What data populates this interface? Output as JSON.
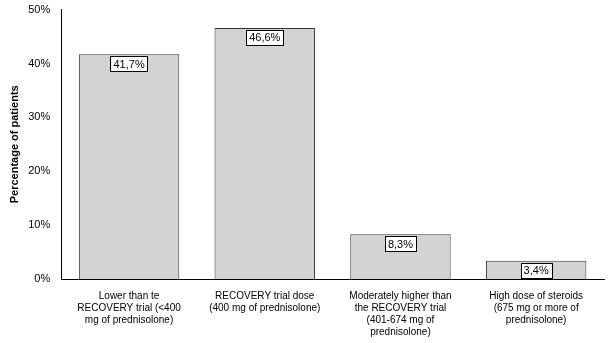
{
  "chart_data": {
    "type": "bar",
    "y_label": "Percentage of patients",
    "categories": [
      "Lower than te\nRECOVERY trial (<400\nmg of prednisolone)",
      "RECOVERY trial dose\n(400 mg of prednisolone)",
      "Moderately higher than\nthe RECOVERY trial\n(401-674 mg of\nprednisolone)",
      "High dose of steroids\n(675 mg or more of\nprednisolone)"
    ],
    "values": [
      41.7,
      46.6,
      8.3,
      3.4
    ],
    "value_labels": [
      "41,7%",
      "46,6%",
      "8,3%",
      "3,4%"
    ],
    "data_labels": true,
    "color": "#d3d3d3",
    "ylim": [
      0,
      50
    ],
    "yticks": [
      {
        "value": 0,
        "label": "0%"
      },
      {
        "value": 10,
        "label": "10%"
      },
      {
        "value": 20,
        "label": "20%"
      },
      {
        "value": 30,
        "label": "30%"
      },
      {
        "value": 40,
        "label": "40%"
      },
      {
        "value": 50,
        "label": "50%"
      }
    ],
    "grid": false
  }
}
